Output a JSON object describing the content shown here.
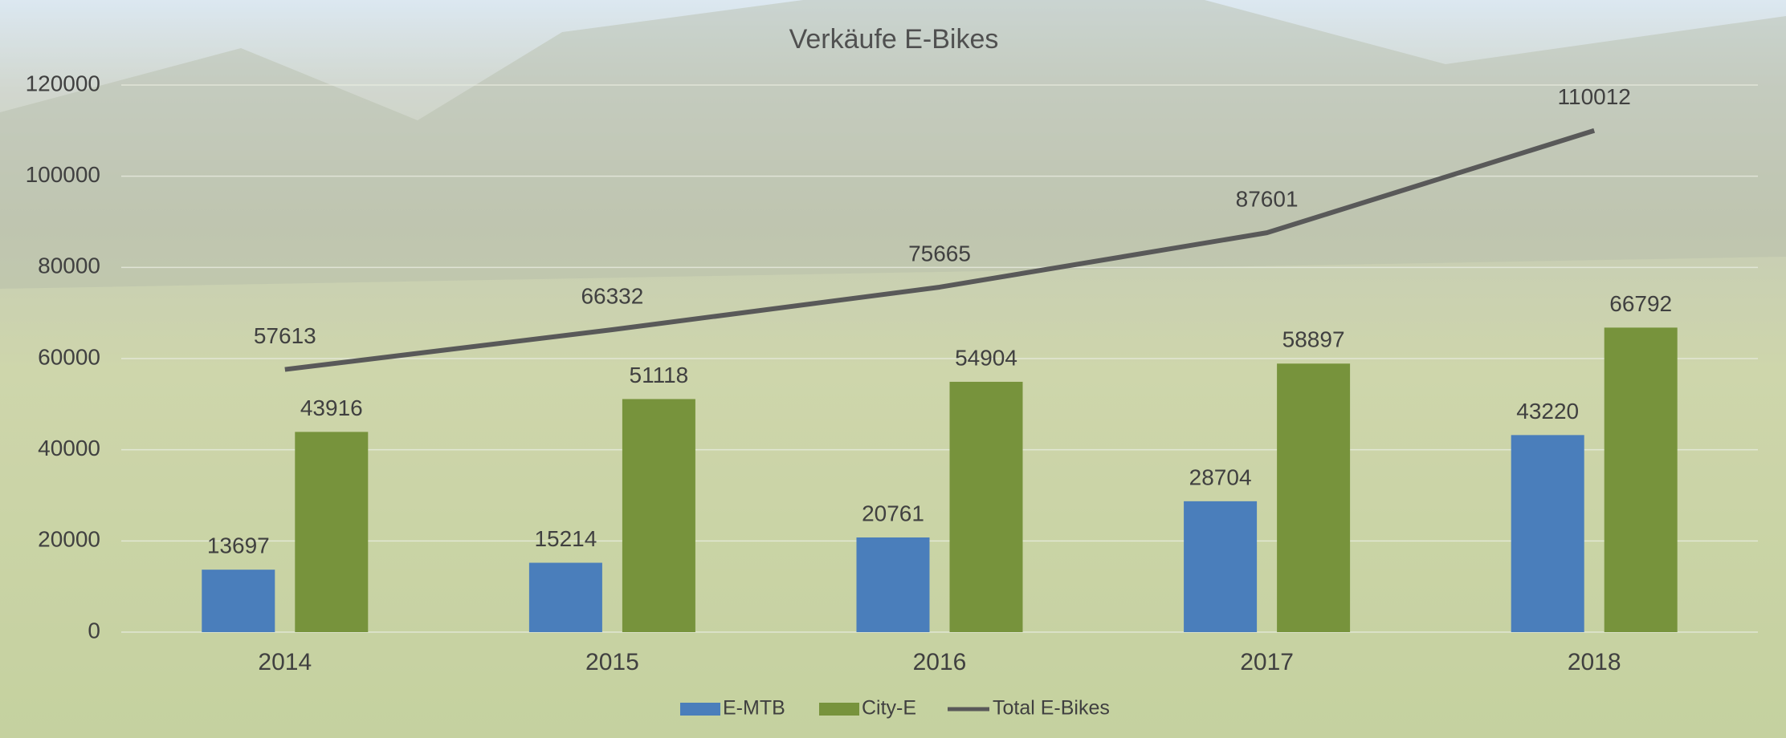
{
  "chart_data": {
    "type": "bar",
    "title": "Verkäufe E-Bikes",
    "categories": [
      "2014",
      "2015",
      "2016",
      "2017",
      "2018"
    ],
    "series": [
      {
        "name": "E-MTB",
        "type": "bar",
        "color": "#4a7ebb",
        "values": [
          13697,
          15214,
          20761,
          28704,
          43220
        ]
      },
      {
        "name": "City-E",
        "type": "bar",
        "color": "#77933c",
        "values": [
          43916,
          51118,
          54904,
          58897,
          66792
        ]
      },
      {
        "name": "Total E-Bikes",
        "type": "line",
        "color": "#595959",
        "values": [
          57613,
          66332,
          75665,
          87601,
          110012
        ]
      }
    ],
    "ylim": [
      0,
      120000
    ],
    "yticks": [
      0,
      20000,
      40000,
      60000,
      80000,
      100000,
      120000
    ],
    "grid": true,
    "legend": "bottom"
  }
}
